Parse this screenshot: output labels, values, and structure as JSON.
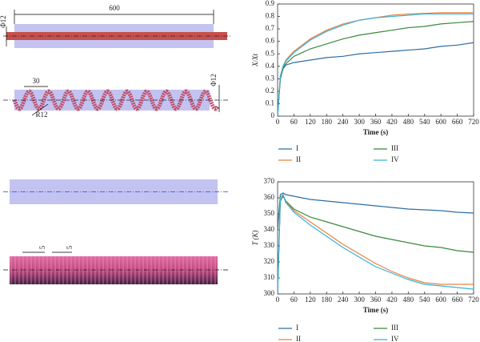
{
  "diagram": {
    "length_label": "600",
    "rod_diameter_label": "Φ12",
    "coil_diameter_label": "Φ12",
    "pitch_label": "30",
    "radius_label": "R12",
    "fin_thickness_label": "5",
    "fin_gap_label": "5"
  },
  "chart_data": [
    {
      "type": "line",
      "xlabel": "Time (s)",
      "ylabel": "X/Xt",
      "x": [
        0,
        10,
        20,
        30,
        60,
        120,
        180,
        240,
        300,
        360,
        420,
        480,
        540,
        600,
        660,
        720
      ],
      "series": [
        {
          "name": "I",
          "color": "#2c6ea4",
          "values": [
            0,
            0.3,
            0.38,
            0.41,
            0.43,
            0.45,
            0.47,
            0.48,
            0.5,
            0.51,
            0.52,
            0.53,
            0.54,
            0.56,
            0.57,
            0.59
          ]
        },
        {
          "name": "II",
          "color": "#e8833a",
          "values": [
            0,
            0.32,
            0.4,
            0.45,
            0.52,
            0.62,
            0.69,
            0.74,
            0.77,
            0.79,
            0.81,
            0.82,
            0.825,
            0.83,
            0.83,
            0.83
          ]
        },
        {
          "name": "III",
          "color": "#3a8a3a",
          "values": [
            0,
            0.3,
            0.39,
            0.42,
            0.48,
            0.54,
            0.58,
            0.62,
            0.65,
            0.67,
            0.69,
            0.71,
            0.72,
            0.74,
            0.75,
            0.76
          ]
        },
        {
          "name": "IV",
          "color": "#38b0de",
          "values": [
            0,
            0.32,
            0.4,
            0.44,
            0.51,
            0.61,
            0.68,
            0.73,
            0.77,
            0.79,
            0.8,
            0.81,
            0.82,
            0.82,
            0.82,
            0.82
          ]
        }
      ],
      "xlim": [
        0,
        720
      ],
      "xticks": [
        0,
        60,
        120,
        180,
        240,
        300,
        360,
        420,
        480,
        540,
        600,
        660,
        720
      ],
      "ylim": [
        0,
        0.9
      ],
      "yticks": [
        0,
        0.1,
        0.2,
        0.3,
        0.4,
        0.5,
        0.6,
        0.7,
        0.8,
        0.9
      ]
    },
    {
      "type": "line",
      "xlabel": "Time (s)",
      "ylabel": "T (K)",
      "x": [
        0,
        10,
        20,
        30,
        60,
        120,
        180,
        240,
        300,
        360,
        420,
        480,
        540,
        600,
        660,
        720
      ],
      "series": [
        {
          "name": "I",
          "color": "#2c6ea4",
          "values": [
            340,
            362,
            363,
            362,
            361,
            359,
            358,
            357,
            356,
            355,
            354,
            353,
            352.5,
            352,
            351,
            350.5
          ]
        },
        {
          "name": "II",
          "color": "#e8833a",
          "values": [
            300,
            360,
            362,
            358,
            352,
            345,
            338,
            331,
            325,
            319,
            314,
            310,
            307,
            306,
            306,
            306
          ]
        },
        {
          "name": "III",
          "color": "#3a8a3a",
          "values": [
            300,
            358,
            361,
            358,
            353,
            348,
            345,
            342,
            339,
            336,
            334,
            332,
            330,
            329,
            327,
            326
          ]
        },
        {
          "name": "IV",
          "color": "#38b0de",
          "values": [
            300,
            360,
            362,
            357,
            351,
            343,
            336,
            329,
            323,
            317,
            313,
            309,
            306,
            305,
            304,
            303
          ]
        }
      ],
      "xlim": [
        0,
        720
      ],
      "xticks": [
        0,
        60,
        120,
        180,
        240,
        300,
        360,
        420,
        480,
        540,
        600,
        660,
        720
      ],
      "ylim": [
        300,
        370
      ],
      "yticks": [
        300,
        310,
        320,
        330,
        340,
        350,
        360,
        370
      ]
    }
  ]
}
